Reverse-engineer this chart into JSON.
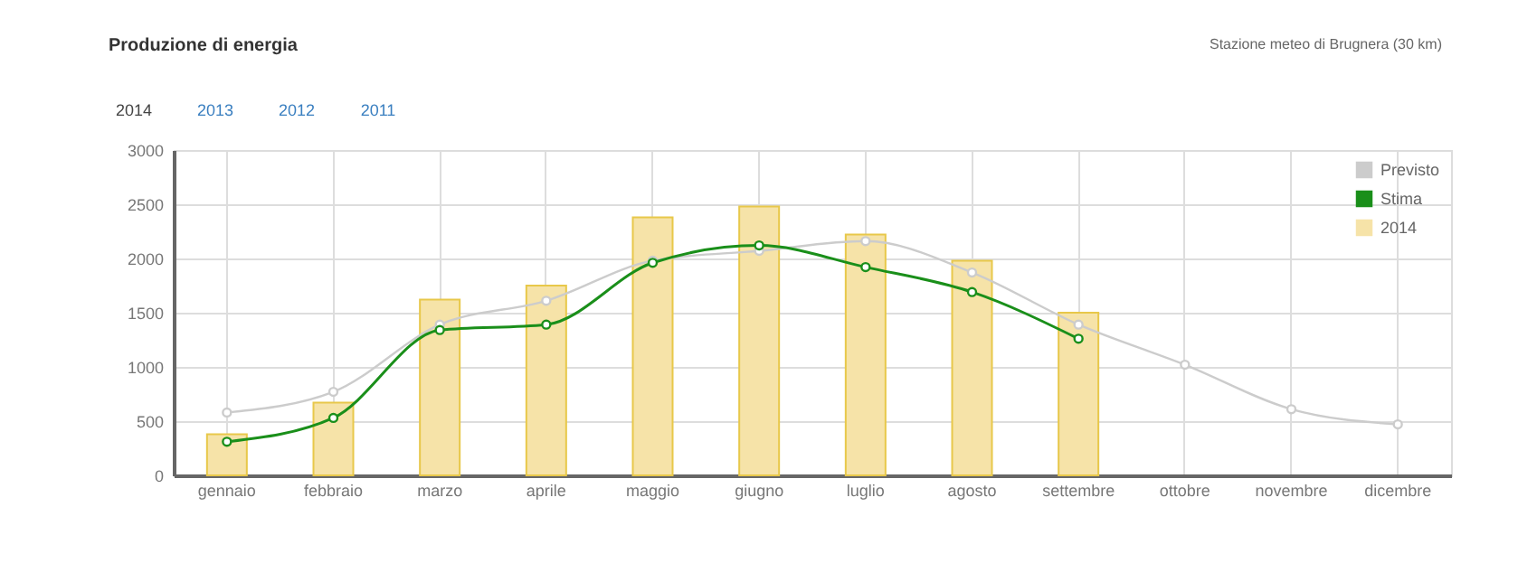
{
  "chart_data": {
    "type": "line",
    "title": "Produzione di energia",
    "annotations": [
      "Stazione meteo di Brugnera (30 km)",
      "2014",
      "2013",
      "2012",
      "2011"
    ],
    "categories": [
      "gennaio",
      "febbraio",
      "marzo",
      "aprile",
      "maggio",
      "giugno",
      "luglio",
      "agosto",
      "settembre",
      "ottobre",
      "novembre",
      "dicembre"
    ],
    "series": [
      {
        "name": "Previsto",
        "color": "#cccccc",
        "values": [
          580,
          770,
          1390,
          1610,
          1980,
          2070,
          2160,
          1870,
          1390,
          1020,
          610,
          470
        ]
      },
      {
        "name": "Stima",
        "color": "#1a8f1a",
        "values": [
          310,
          530,
          1340,
          1390,
          1960,
          2120,
          1920,
          1690,
          1260,
          null,
          null,
          null
        ]
      },
      {
        "name": "2014",
        "type": "bar",
        "color": "#f6e3a8",
        "values": [
          380,
          670,
          1620,
          1750,
          2380,
          2480,
          2220,
          1980,
          1500,
          null,
          null,
          null
        ]
      }
    ],
    "ylim": [
      0,
      3000
    ],
    "yticks": [
      0,
      500,
      1000,
      1500,
      2000,
      2500,
      3000
    ],
    "grid": true,
    "legend": "top right",
    "marker": "circle",
    "line_style": "solid"
  }
}
